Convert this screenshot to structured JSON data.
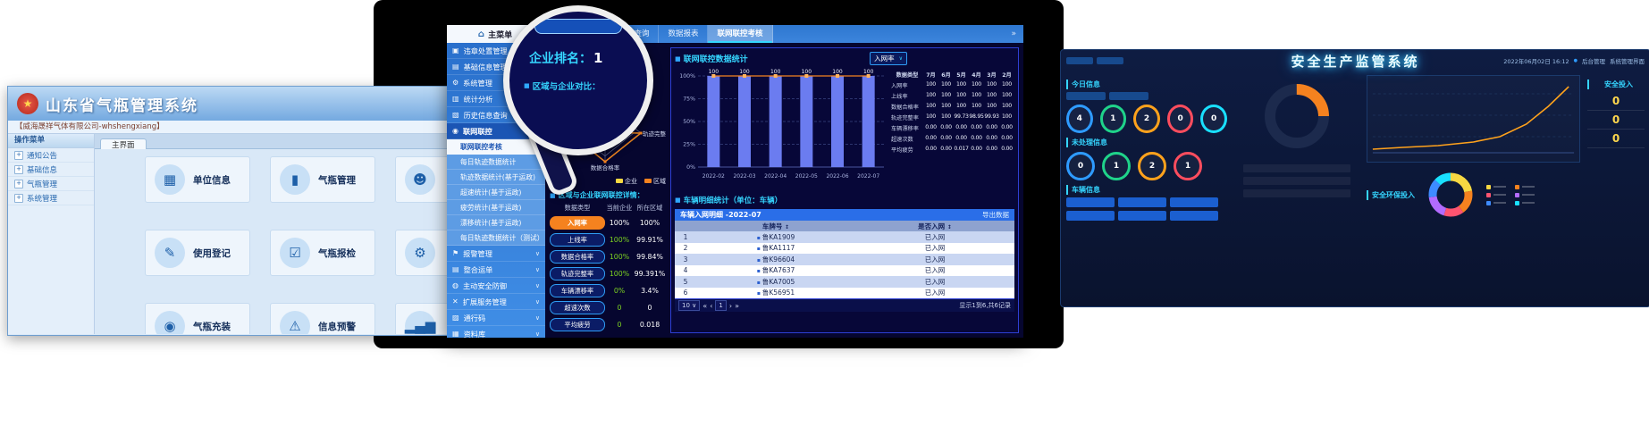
{
  "magnifier": {
    "ranking_label": "企业排名：",
    "ranking_value": "1",
    "subtitle": "区域与企业对比："
  },
  "left_app": {
    "title": "山东省气瓶管理系统",
    "account": "【威海晟祥气体有限公司-whshengxiang】",
    "menu_header": "操作菜单",
    "menu_items": [
      "通知公告",
      "基础信息",
      "气瓶管理",
      "系统管理"
    ],
    "tab": "主界面",
    "tiles": [
      {
        "label": "单位信息",
        "icon": "building-icon",
        "glyph": "▦"
      },
      {
        "label": "气瓶管理",
        "icon": "cylinder-icon",
        "glyph": "▮"
      },
      {
        "label": "使用登记",
        "icon": "register-icon",
        "glyph": "✎"
      },
      {
        "label": "气瓶报检",
        "icon": "inspect-icon",
        "glyph": "☑"
      },
      {
        "label": "气瓶充装",
        "icon": "filling-icon",
        "glyph": "◉"
      },
      {
        "label": "信息预警",
        "icon": "alert-icon",
        "glyph": "⚠"
      }
    ],
    "partial_tiles": [
      {
        "icon": "person-icon",
        "glyph": "☻"
      },
      {
        "icon": "wrench-icon",
        "glyph": "⚙"
      },
      {
        "icon": "chart-icon",
        "glyph": "▂▄▆"
      }
    ]
  },
  "dashboard": {
    "home_tab": "主菜单",
    "tabs": [
      {
        "label": "车辆列表",
        "active": false
      },
      {
        "label": "数据查询",
        "active": false
      },
      {
        "label": "数据报表",
        "active": false
      },
      {
        "label": "联网联控考核",
        "active": true
      }
    ],
    "sidebar": [
      {
        "label": "违章处置管理",
        "type": "top",
        "glyph": "▣",
        "chev": true
      },
      {
        "label": "基础信息管理",
        "type": "top",
        "glyph": "▤",
        "chev": true
      },
      {
        "label": "系统管理",
        "type": "top",
        "glyph": "⚙",
        "chev": false
      },
      {
        "label": "统计分析",
        "type": "top",
        "glyph": "▥",
        "chev": true
      },
      {
        "label": "历史信息查询",
        "type": "top",
        "glyph": "▧",
        "chev": true
      },
      {
        "label": "联网联控",
        "type": "section",
        "glyph": "◉",
        "chev": false
      },
      {
        "label": "联网联控考核",
        "type": "sub",
        "selected": true
      },
      {
        "label": "每日轨迹数据统计",
        "type": "sub"
      },
      {
        "label": "轨迹数据统计(基于运政)",
        "type": "sub"
      },
      {
        "label": "超速统计(基于运政)",
        "type": "sub"
      },
      {
        "label": "疲劳统计(基于运政)",
        "type": "sub"
      },
      {
        "label": "漂移统计(基于运政)",
        "type": "sub"
      },
      {
        "label": "每日轨迹数据统计（测试）",
        "type": "sub"
      },
      {
        "label": "报警管理",
        "type": "top",
        "glyph": "⚑",
        "chev": true
      },
      {
        "label": "整合运单",
        "type": "top",
        "glyph": "▤",
        "chev": true
      },
      {
        "label": "主动安全防御",
        "type": "top",
        "glyph": "◍",
        "chev": true
      },
      {
        "label": "扩展服务管理",
        "type": "top",
        "glyph": "✕",
        "chev": true
      },
      {
        "label": "通行码",
        "type": "top",
        "glyph": "▨",
        "chev": true
      },
      {
        "label": "资料库",
        "type": "top",
        "glyph": "▦",
        "chev": true
      }
    ],
    "ranking": {
      "label": "企业排名：",
      "value": "1"
    },
    "query": {
      "label": "查询日期:",
      "value": "2022-07"
    },
    "radar": {
      "title": "区域与企业对比：",
      "legend": [
        {
          "label": "企业",
          "color": "#f7d842"
        },
        {
          "label": "区域",
          "color": "#f5821f"
        }
      ],
      "chart_data": {
        "type": "radar",
        "axes": [
          "漂移车辆率",
          "轨迹完整率",
          "数据合格率",
          "上线率"
        ],
        "series": [
          {
            "name": "企业",
            "values": [
              0,
              100,
              100,
              100
            ]
          },
          {
            "name": "区域",
            "values": [
              3.4,
              99.391,
              99.84,
              99.91
            ]
          }
        ],
        "max": 100
      }
    },
    "details": {
      "title": "区域与企业联网联控详情：",
      "columns": [
        "数据类型",
        "当前企业",
        "所在区域"
      ],
      "rows": [
        {
          "metric": "入网率",
          "enterprise": "100%",
          "region": "100%",
          "highlight": true,
          "green": false
        },
        {
          "metric": "上线率",
          "enterprise": "100%",
          "region": "99.91%",
          "highlight": false,
          "green": true
        },
        {
          "metric": "数据合格率",
          "enterprise": "100%",
          "region": "99.84%",
          "highlight": false,
          "green": true
        },
        {
          "metric": "轨迹完整率",
          "enterprise": "100%",
          "region": "99.391%",
          "highlight": false,
          "green": true
        },
        {
          "metric": "车辆漂移率",
          "enterprise": "0%",
          "region": "3.4%",
          "highlight": false,
          "green": true
        },
        {
          "metric": "超速次数",
          "enterprise": "0",
          "region": "0",
          "highlight": false,
          "green": true
        },
        {
          "metric": "平均疲劳",
          "enterprise": "0",
          "region": "0.018",
          "highlight": false,
          "green": true
        }
      ]
    },
    "stats_panel": {
      "title": "联网联控数据统计",
      "dropdown": "入网率",
      "chart_data": {
        "type": "bar",
        "categories": [
          "2022-02",
          "2022-03",
          "2022-04",
          "2022-05",
          "2022-06",
          "2022-07"
        ],
        "values": [
          100,
          100,
          100,
          100,
          100,
          100
        ],
        "line_values": [
          100,
          100,
          100,
          100,
          100,
          100
        ],
        "bar_labels": [
          "100",
          "100",
          "100",
          "100",
          "100",
          "100"
        ],
        "y_ticks": [
          "100%",
          "75%",
          "50%",
          "25%",
          "0%"
        ],
        "ylim": [
          0,
          100
        ],
        "bar_color": "#6b7cf0",
        "line_color": "#f5821f",
        "legend_position": "none",
        "grid": true
      }
    },
    "month_table": {
      "columns": [
        "数据类型",
        "7月",
        "6月",
        "5月",
        "4月",
        "3月",
        "2月"
      ],
      "rows": [
        {
          "metric": "入网率",
          "values": [
            "100",
            "100",
            "100",
            "100",
            "100",
            "100"
          ]
        },
        {
          "metric": "上线率",
          "values": [
            "100",
            "100",
            "100",
            "100",
            "100",
            "100"
          ]
        },
        {
          "metric": "数据合格率",
          "values": [
            "100",
            "100",
            "100",
            "100",
            "100",
            "100"
          ]
        },
        {
          "metric": "轨迹完整率",
          "values": [
            "100",
            "100",
            "99.73",
            "98.95",
            "99.93",
            "100"
          ]
        },
        {
          "metric": "车辆漂移率",
          "values": [
            "0.00",
            "0.00",
            "0.00",
            "0.00",
            "0.00",
            "0.00"
          ]
        },
        {
          "metric": "超速次数",
          "values": [
            "0.00",
            "0.00",
            "0.00",
            "0.00",
            "0.00",
            "0.00"
          ]
        },
        {
          "metric": "平均疲劳",
          "values": [
            "0.00",
            "0.00",
            "0.017",
            "0.00",
            "0.00",
            "0.00"
          ]
        }
      ]
    },
    "vehicle_section": {
      "title": "车辆明细统计（单位：车辆）",
      "table_title": "车辆入网明细 -2022-07",
      "export_label": "导出数据",
      "columns": [
        "车牌号",
        "是否入网"
      ],
      "rows": [
        {
          "index": "1",
          "plate": "鲁KA1909",
          "status": "已入网"
        },
        {
          "index": "2",
          "plate": "鲁KA1117",
          "status": "已入网"
        },
        {
          "index": "3",
          "plate": "鲁K96604",
          "status": "已入网"
        },
        {
          "index": "4",
          "plate": "鲁KA7637",
          "status": "已入网"
        },
        {
          "index": "5",
          "plate": "鲁KA7005",
          "status": "已入网"
        },
        {
          "index": "6",
          "plate": "鲁K56951",
          "status": "已入网"
        }
      ],
      "pagination": {
        "page_size": "10",
        "page": "1",
        "summary": "显示1到6,共6记录"
      }
    }
  },
  "safety_app": {
    "title": "安全生产监管系统",
    "datetime": "2022年06月02日 16:12",
    "admin_label": "后台管理",
    "console_label": "系统管理界面",
    "sections": {
      "today": "今日信息",
      "pending": "未处理信息",
      "vehicle": "车辆信息",
      "invest": "安全投入",
      "env": "安全环保投入"
    },
    "today_rings": [
      {
        "value": "4",
        "color": "#2e9bff"
      },
      {
        "value": "1",
        "color": "#1fd38a"
      },
      {
        "value": "2",
        "color": "#ffa21c"
      },
      {
        "value": "0",
        "color": "#ff4d5e"
      },
      {
        "value": "0",
        "color": "#19e0ff"
      }
    ],
    "pending_rings": [
      {
        "value": "0",
        "color": "#2e9bff"
      },
      {
        "value": "1",
        "color": "#1fd38a"
      },
      {
        "value": "2",
        "color": "#ffa21c"
      },
      {
        "value": "1",
        "color": "#ff4d5e"
      }
    ],
    "invest_values": [
      "0",
      "0",
      "0"
    ],
    "legend_colors": [
      "#f7d842",
      "#f5821f",
      "#ff5470",
      "#b36bff",
      "#3e8bff",
      "#19e0ff"
    ]
  }
}
